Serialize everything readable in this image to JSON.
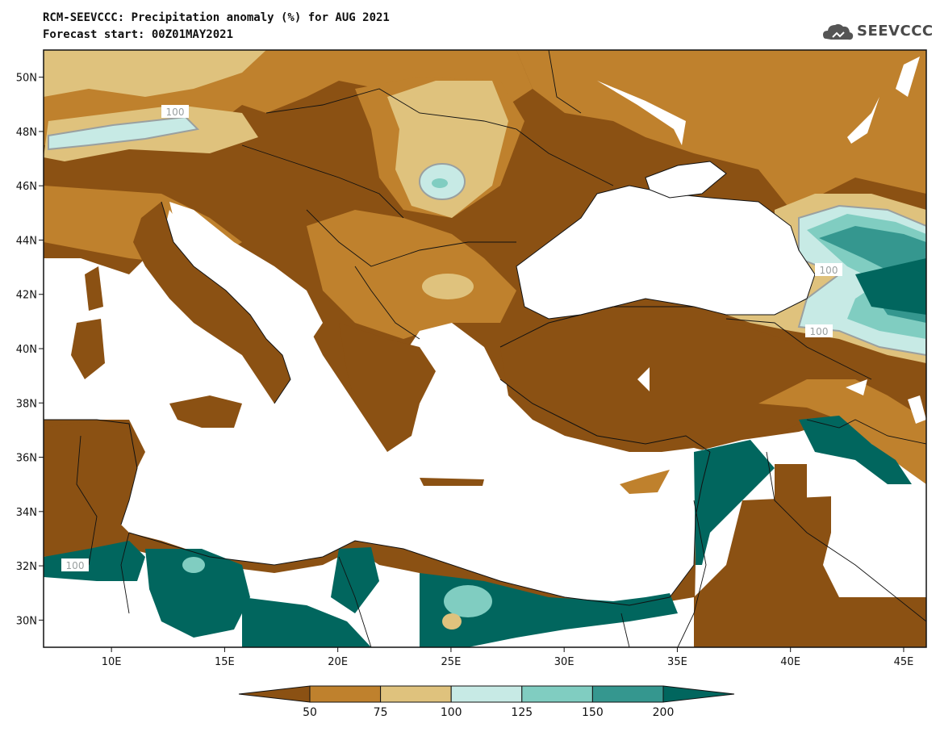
{
  "title": {
    "line1": "RCM-SEEVCCC: Precipitation anomaly (%) for AUG 2021",
    "line2": "Forecast start: 00Z01MAY2021"
  },
  "logo": {
    "text": "SEEVCCC",
    "icon": "cloud-icon"
  },
  "axes": {
    "lat_labels": [
      "50N",
      "48N",
      "46N",
      "44N",
      "42N",
      "40N",
      "38N",
      "36N",
      "34N",
      "32N",
      "30N"
    ],
    "lon_labels": [
      "10E",
      "15E",
      "20E",
      "25E",
      "30E",
      "35E",
      "40E",
      "45E"
    ],
    "lat_range": [
      29,
      51
    ],
    "lon_range": [
      7,
      46
    ]
  },
  "contour_labels": [
    "100",
    "100",
    "100",
    "100"
  ],
  "colorbar": {
    "levels": [
      "50",
      "75",
      "100",
      "125",
      "150",
      "200"
    ],
    "colors": [
      "#8b5113",
      "#bf812d",
      "#dfc27d",
      "#c7eae5",
      "#80cdc1",
      "#35978f",
      "#01665e"
    ]
  },
  "land_color": "#8b5113",
  "sea_color": "#ffffff"
}
